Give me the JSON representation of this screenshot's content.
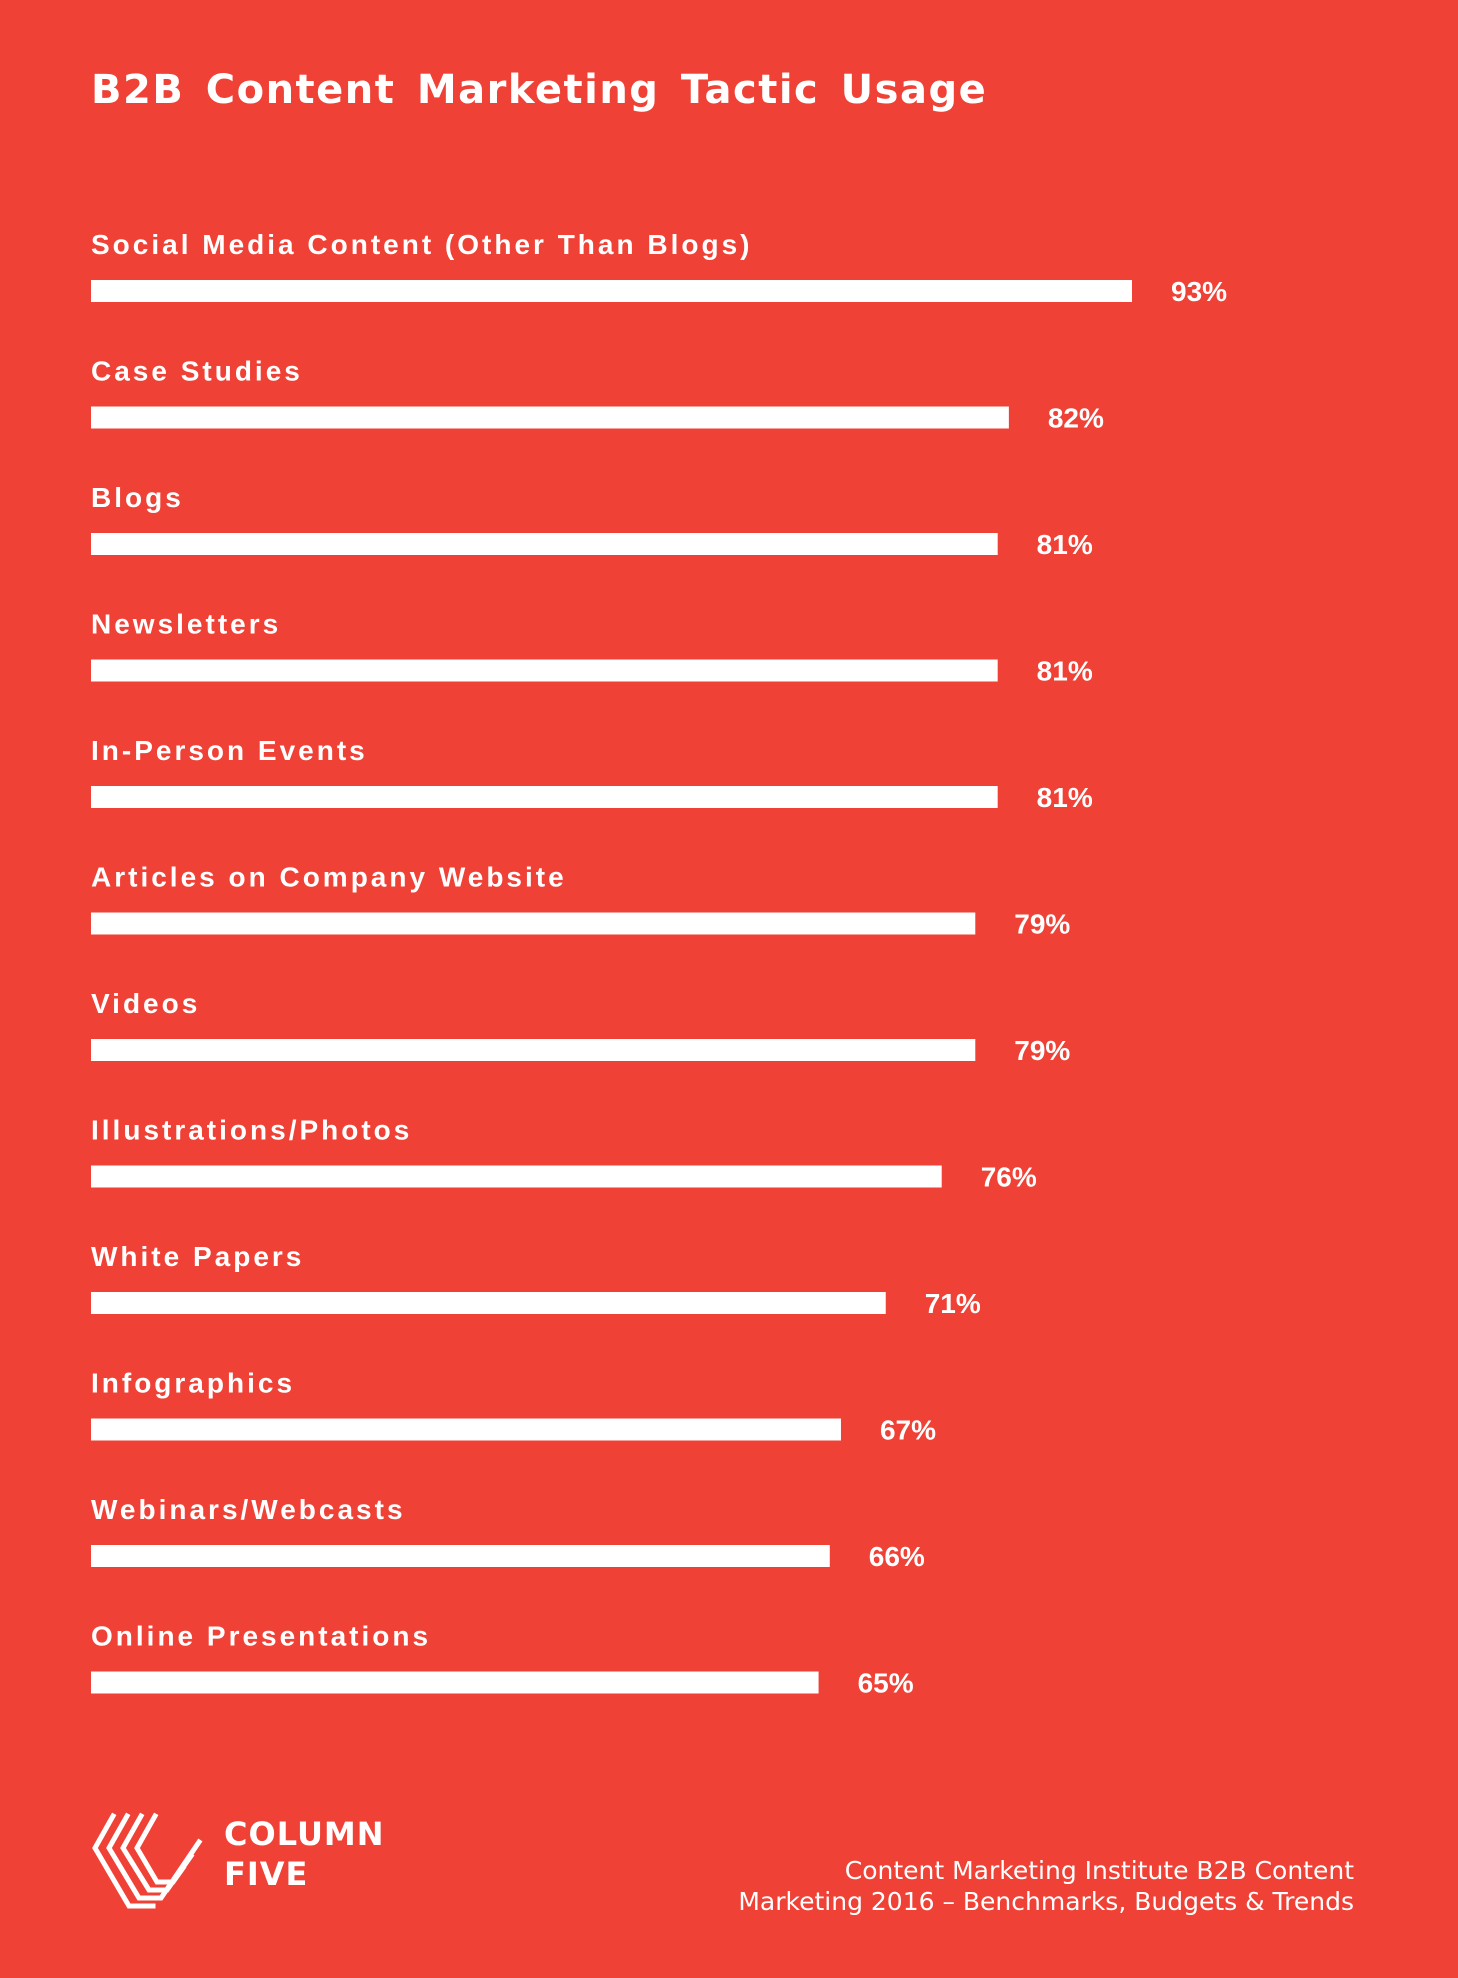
{
  "title": "B2B Content Marketing Tactic Usage",
  "chart_data": {
    "type": "bar",
    "orientation": "horizontal",
    "title": "B2B Content Marketing Tactic Usage",
    "categories": [
      "Social Media Content (Other Than Blogs)",
      "Case Studies",
      "Blogs",
      "Newsletters",
      "In-Person Events",
      "Articles on Company Website",
      "Videos",
      "Illustrations/Photos",
      "White Papers",
      "Infographics",
      "Webinars/Webcasts",
      "Online Presentations"
    ],
    "values": [
      93,
      82,
      81,
      81,
      81,
      79,
      79,
      76,
      71,
      67,
      66,
      65
    ],
    "value_labels": [
      "93%",
      "82%",
      "81%",
      "81%",
      "81%",
      "79%",
      "79%",
      "76%",
      "71%",
      "67%",
      "66%",
      "65%"
    ],
    "unit": "%",
    "xlim": [
      0,
      100
    ],
    "grid": false,
    "legend": "none",
    "bar_color": "#ffffff",
    "background_color": "#ef4136"
  },
  "logo": {
    "line1": "COLUMN",
    "line2": "FIVE",
    "icon": "column-five-logo-icon"
  },
  "source": {
    "line1": "Content Marketing Institute B2B Content",
    "line2": "Marketing 2016 – Benchmarks, Budgets & Trends"
  },
  "colors": {
    "background": "#ef4136",
    "foreground": "#ffffff"
  }
}
